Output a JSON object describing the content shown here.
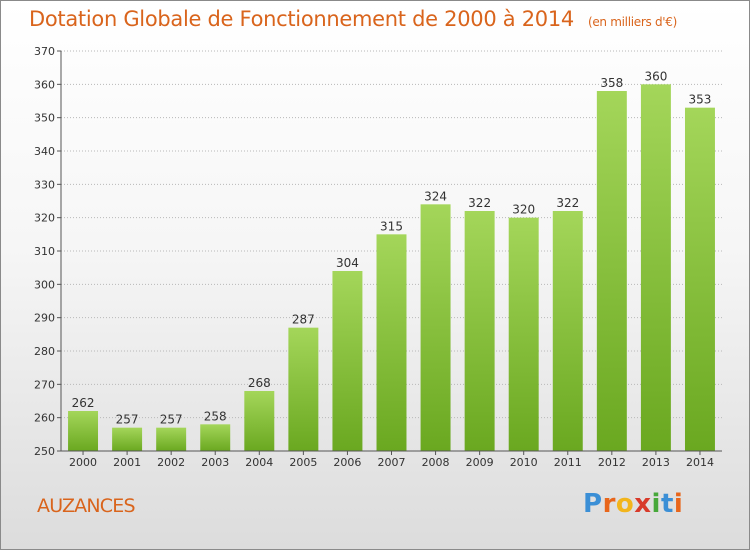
{
  "title": "Dotation Globale de Fonctionnement de 2000 à 2014",
  "subtitle": "(en milliers d'€)",
  "commune": "AUZANCES",
  "logo": {
    "letters": [
      "P",
      "r",
      "o",
      "x",
      "i",
      "t",
      "i"
    ],
    "colors": [
      "#3b8fd6",
      "#e8661b",
      "#f2b51c",
      "#d83a2a",
      "#47a83a",
      "#3b8fd6",
      "#e8661b"
    ]
  },
  "colors": {
    "bar_top": "#a4d65a",
    "bar_bottom": "#6aa820",
    "accent": "#d9641c"
  },
  "chart_data": {
    "type": "bar",
    "title": "Dotation Globale de Fonctionnement de 2000 à 2014",
    "subtitle": "(en milliers d'€)",
    "xlabel": "",
    "ylabel": "",
    "categories": [
      "2000",
      "2001",
      "2002",
      "2003",
      "2004",
      "2005",
      "2006",
      "2007",
      "2008",
      "2009",
      "2010",
      "2011",
      "2012",
      "2013",
      "2014"
    ],
    "values": [
      262,
      257,
      257,
      258,
      268,
      287,
      304,
      315,
      324,
      322,
      320,
      322,
      358,
      360,
      353
    ],
    "ylim": [
      250,
      370
    ],
    "yticks": [
      250,
      260,
      270,
      280,
      290,
      300,
      310,
      320,
      330,
      340,
      350,
      360,
      370
    ],
    "grid": "horizontal dotted",
    "legend": "none"
  }
}
